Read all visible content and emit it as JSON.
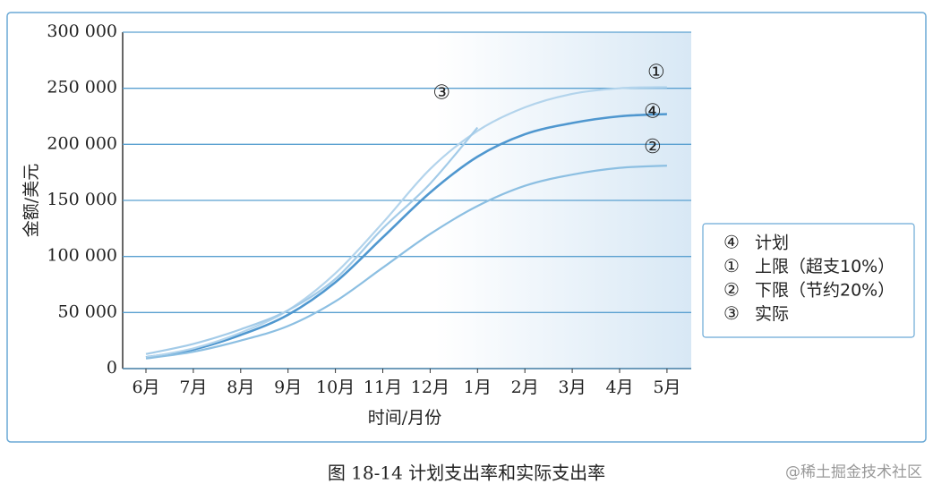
{
  "chart_data": {
    "type": "line",
    "x_label": "时间/月份",
    "y_label": "金额/美元",
    "caption": "图 18-14    计划支出率和实际支出率",
    "categories": [
      "6月",
      "7月",
      "8月",
      "9月",
      "10月",
      "11月",
      "12月",
      "1月",
      "2月",
      "3月",
      "4月",
      "5月"
    ],
    "series": [
      {
        "label": "④",
        "name": "计划",
        "color": "#4f97cf",
        "values": [
          10000,
          17000,
          30000,
          48000,
          77000,
          117000,
          157000,
          189000,
          209000,
          219000,
          225000,
          227000
        ]
      },
      {
        "label": "①",
        "name": "上限（超支10%）",
        "color": "#b3d4ec",
        "values": [
          10000,
          18000,
          32000,
          52000,
          85000,
          130000,
          178000,
          212000,
          233000,
          245000,
          250000,
          251000
        ]
      },
      {
        "label": "②",
        "name": "下限（节约20%）",
        "color": "#8cbfe2",
        "values": [
          9000,
          15000,
          25000,
          38000,
          60000,
          90000,
          120000,
          145000,
          163000,
          173000,
          179000,
          181000
        ]
      },
      {
        "label": "③",
        "name": "实际",
        "color": "#a3cbe8",
        "values": [
          13000,
          22000,
          35000,
          52000,
          80000,
          125000,
          165000,
          215000,
          null,
          null,
          null,
          null
        ]
      }
    ],
    "ylim": [
      0,
      300000
    ],
    "yticks": [
      0,
      {
        "value": 50000,
        "label": "50 000"
      },
      {
        "value": 100000,
        "label": "100 000"
      },
      {
        "value": 150000,
        "label": "150 000"
      },
      {
        "value": 200000,
        "label": "200 000"
      },
      {
        "value": 250000,
        "label": "250 000"
      },
      {
        "value": 300000,
        "label": "300 000"
      }
    ],
    "grid": true
  },
  "watermark": "@稀土掘金技术社区"
}
